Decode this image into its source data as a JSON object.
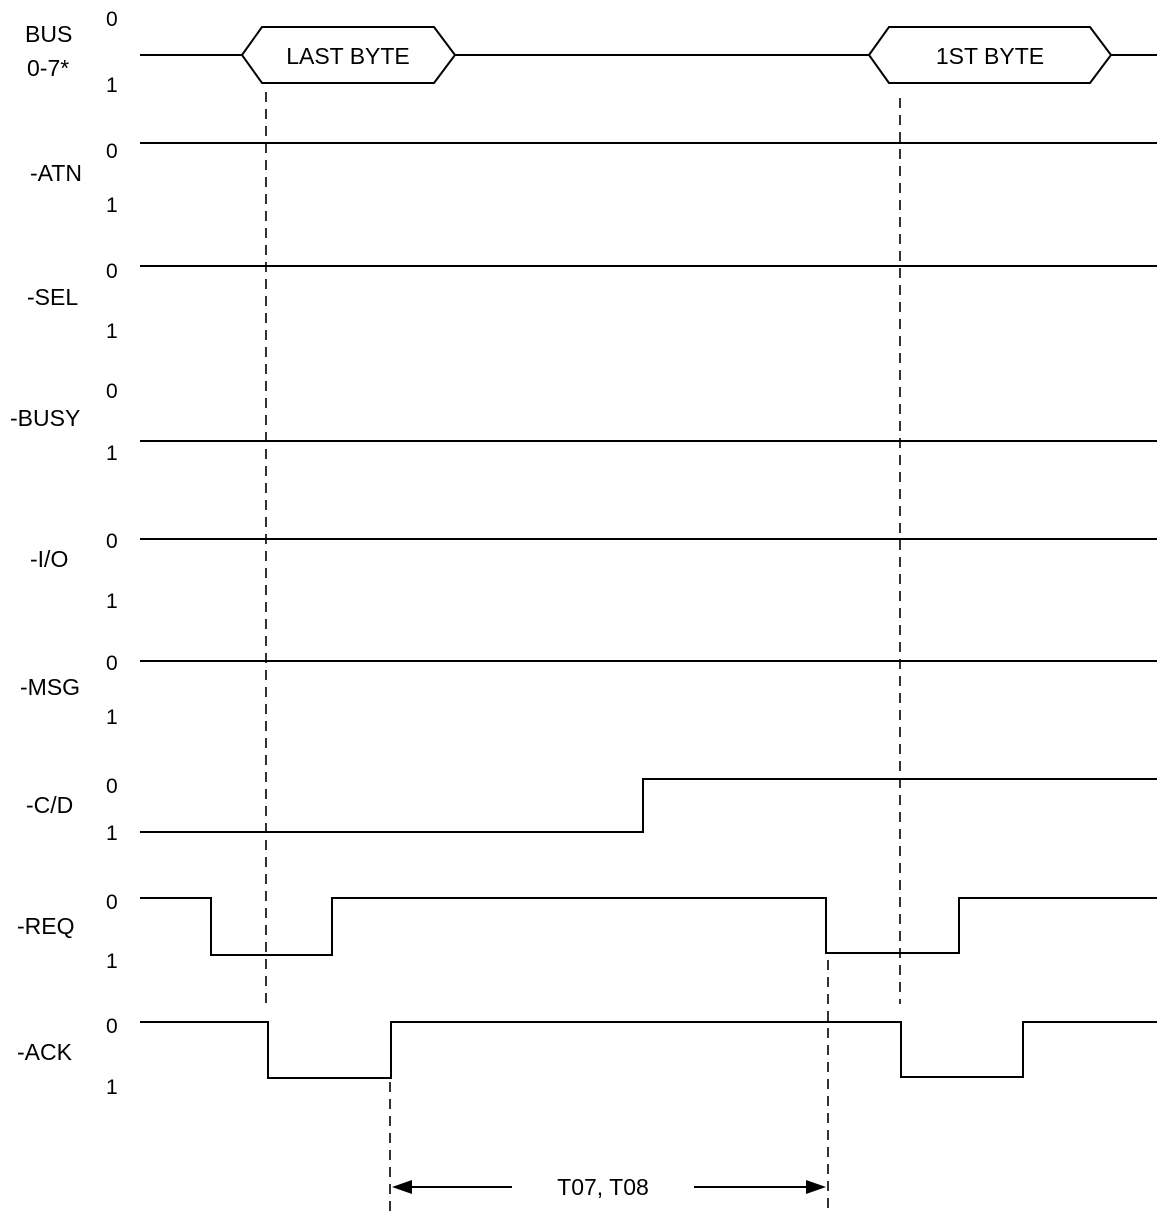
{
  "signals": {
    "bus": {
      "name_line1": "BUS",
      "name_line2": "0-7*",
      "level0": "0",
      "level1": "1"
    },
    "atn": {
      "name": "-ATN",
      "level0": "0",
      "level1": "1"
    },
    "sel": {
      "name": "-SEL",
      "level0": "0",
      "level1": "1"
    },
    "busy": {
      "name": "-BUSY",
      "level0": "0",
      "level1": "1"
    },
    "io": {
      "name": "-I/O",
      "level0": "0",
      "level1": "1"
    },
    "msg": {
      "name": "-MSG",
      "level0": "0",
      "level1": "1"
    },
    "cd": {
      "name": "-C/D",
      "level0": "0",
      "level1": "1"
    },
    "req": {
      "name": "-REQ",
      "level0": "0",
      "level1": "1"
    },
    "ack": {
      "name": "-ACK",
      "level0": "0",
      "level1": "1"
    }
  },
  "bus_bytes": {
    "last": "LAST BYTE",
    "first": "1ST BYTE"
  },
  "timing": {
    "label": "T07, T08"
  }
}
